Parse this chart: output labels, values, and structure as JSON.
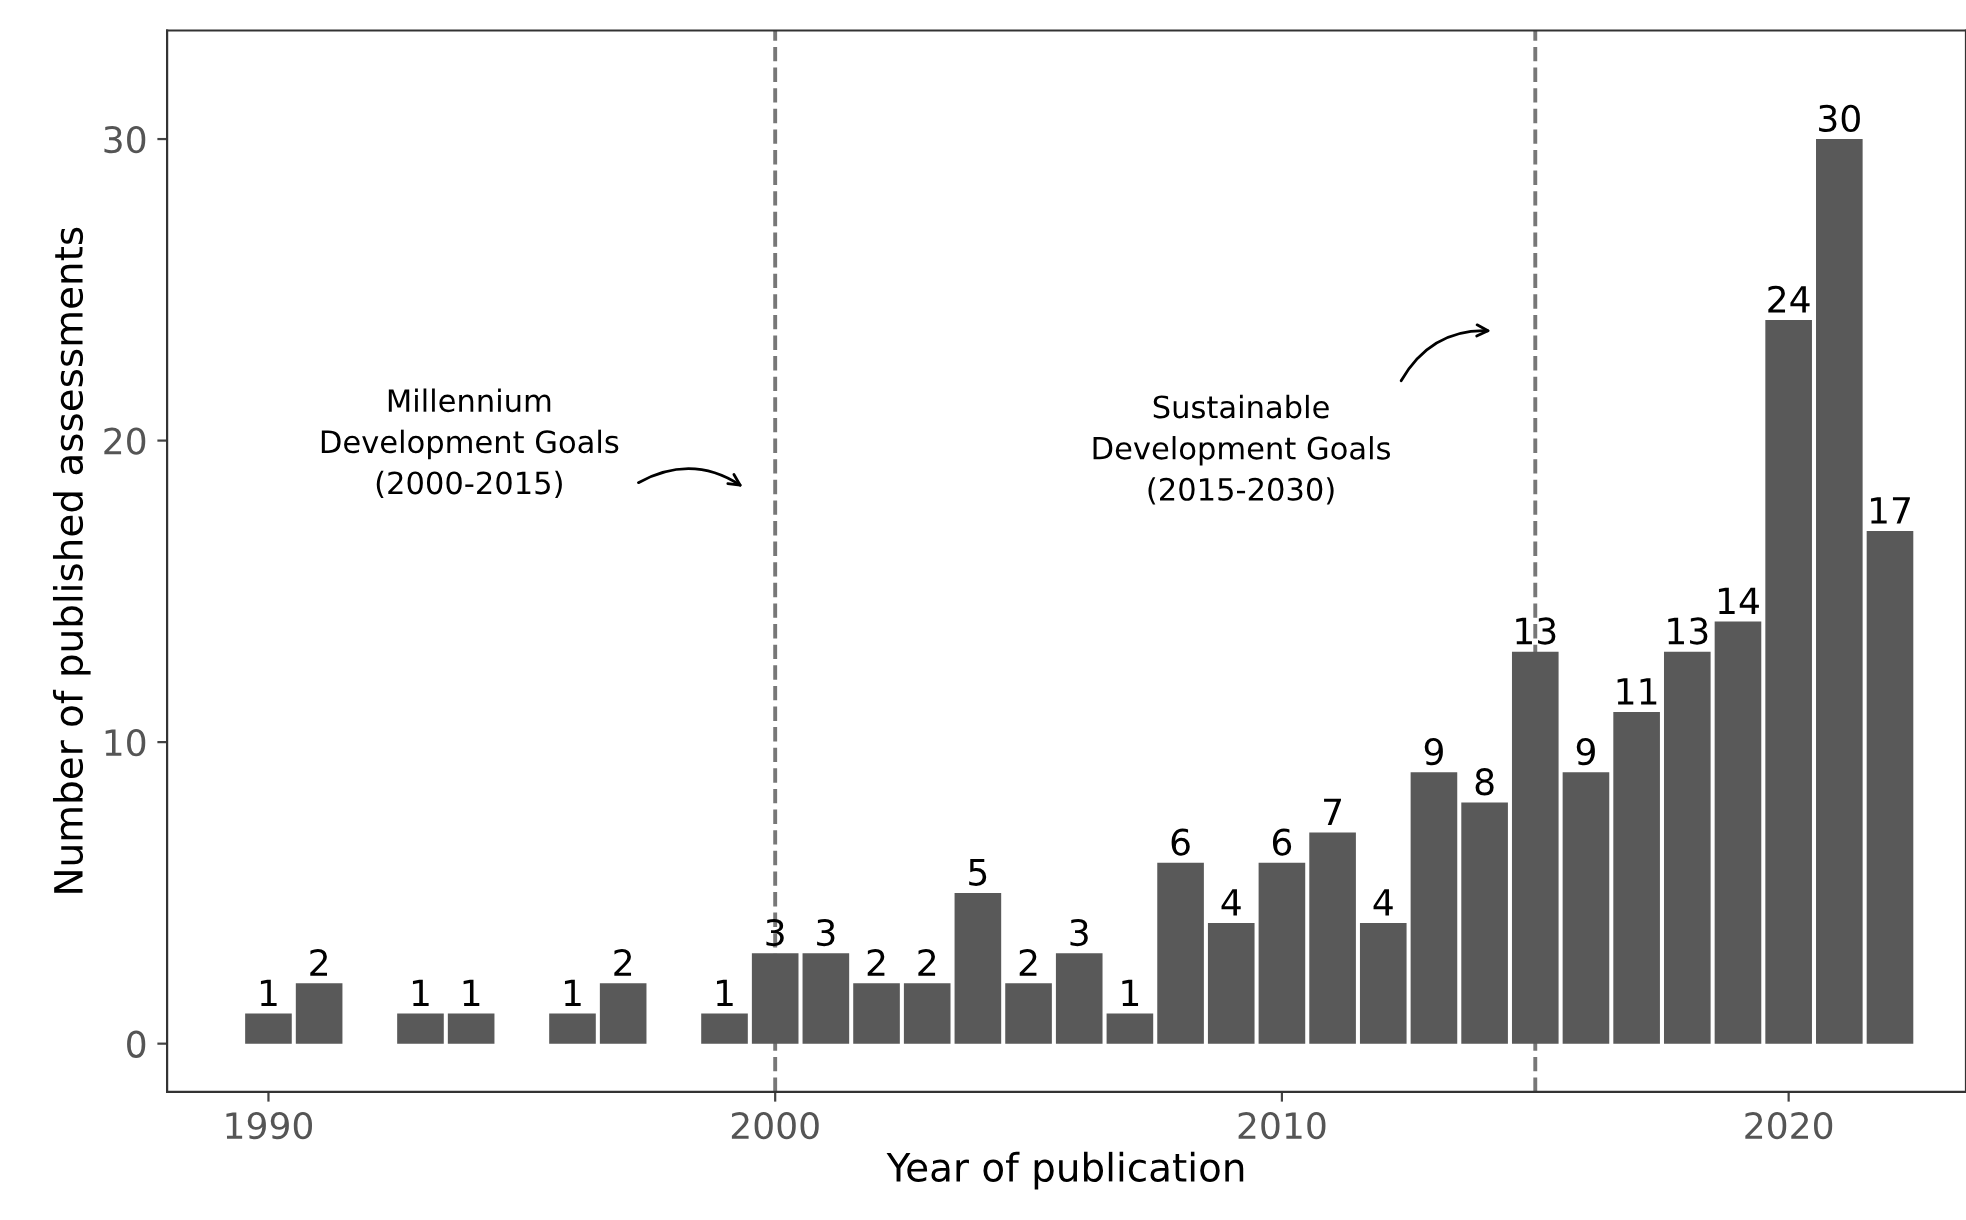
{
  "chart_data": {
    "type": "bar",
    "xlabel": "Year of publication",
    "ylabel": "Number of published assessments",
    "x": [
      1990,
      1991,
      1993,
      1994,
      1996,
      1997,
      1999,
      2000,
      2001,
      2002,
      2003,
      2004,
      2005,
      2006,
      2007,
      2008,
      2009,
      2010,
      2011,
      2012,
      2013,
      2014,
      2015,
      2016,
      2017,
      2018,
      2019,
      2020,
      2021,
      2022
    ],
    "values": [
      1,
      2,
      1,
      1,
      1,
      2,
      1,
      3,
      3,
      2,
      2,
      5,
      2,
      3,
      1,
      6,
      4,
      6,
      7,
      4,
      9,
      8,
      13,
      9,
      11,
      13,
      14,
      24,
      30,
      17
    ],
    "color": "#595959",
    "data_labels": true,
    "xlim": [
      1988,
      2023.5
    ],
    "xticks": [
      1990,
      2000,
      2010,
      2020
    ],
    "ylim": [
      -1.6,
      33.6
    ],
    "yticks": [
      0,
      10,
      20,
      30
    ],
    "ref_lines": [
      {
        "axis": "x",
        "value": 2000,
        "color": "#777777",
        "line_style": "dashed"
      },
      {
        "axis": "x",
        "value": 2015,
        "color": "#777777",
        "line_style": "dashed"
      }
    ],
    "annotations": [
      "Millennium\nDevelopment Goals\n(2000-2015)",
      "Sustainable\nDevelopment Goals\n(2015-2030)"
    ],
    "grid": false,
    "legend": false
  }
}
